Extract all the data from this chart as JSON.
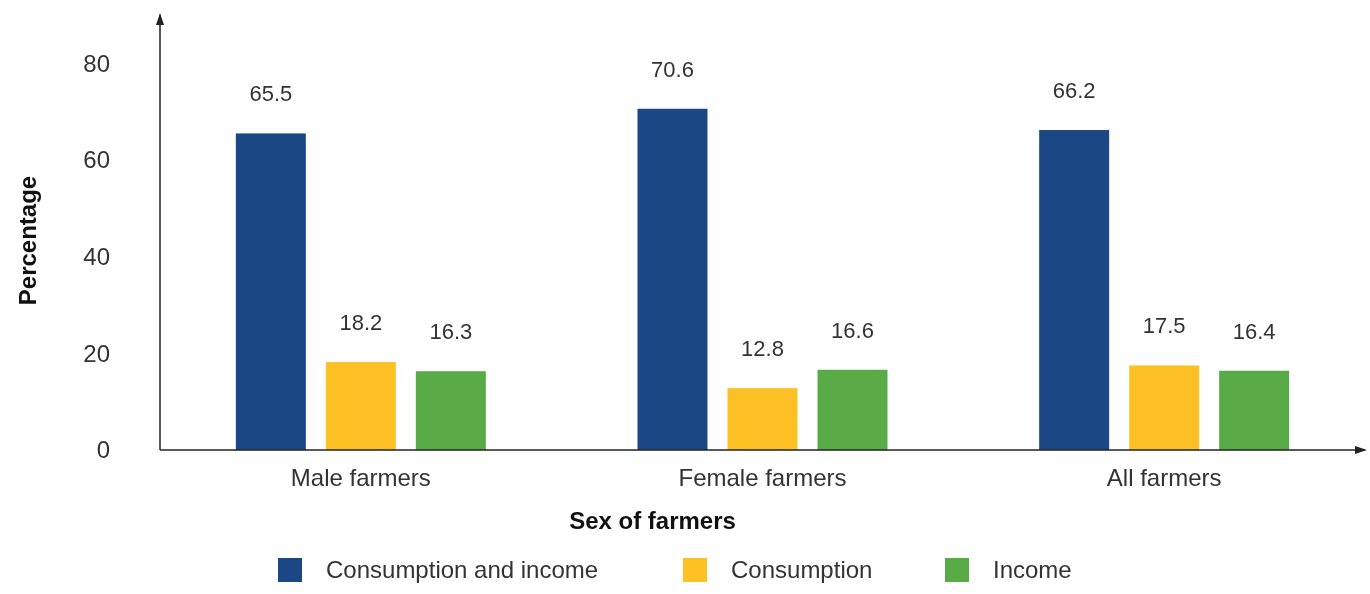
{
  "chart_data": {
    "type": "bar",
    "xlabel": "Sex of farmers",
    "ylabel": "Percentage",
    "categories": [
      "Male farmers",
      "Female farmers",
      "All farmers"
    ],
    "series": [
      {
        "name": "Consumption and income",
        "color": "#1c4785",
        "values": [
          65.5,
          70.6,
          66.2
        ]
      },
      {
        "name": "Consumption",
        "color": "#fdc125",
        "values": [
          18.2,
          12.8,
          17.5
        ]
      },
      {
        "name": "Income",
        "color": "#58ab46",
        "values": [
          16.3,
          16.6,
          16.4
        ]
      }
    ],
    "ylim": [
      0,
      90
    ],
    "yticks": [
      0,
      20,
      40,
      60,
      80
    ],
    "grid": false,
    "legend": "bottom",
    "data_labels": true
  }
}
